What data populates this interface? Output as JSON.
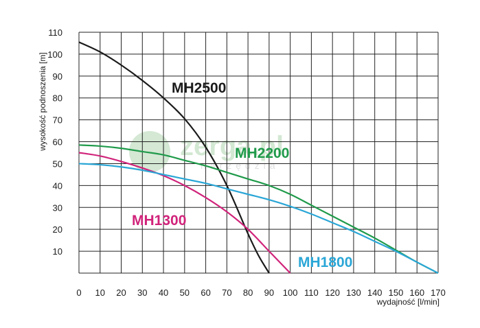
{
  "chart_data": {
    "type": "line",
    "xlabel": "wydajność [l/min]",
    "ylabel": "wysokość podnoszenia [m]",
    "xlim": [
      0,
      170
    ],
    "ylim": [
      0,
      110
    ],
    "xticks": [
      0,
      10,
      20,
      30,
      40,
      50,
      60,
      70,
      80,
      90,
      100,
      110,
      120,
      130,
      140,
      150,
      160,
      170
    ],
    "yticks": [
      10,
      20,
      30,
      40,
      50,
      60,
      70,
      80,
      90,
      100,
      110
    ],
    "grid": true,
    "series": [
      {
        "name": "MH2500",
        "color": "#1a1a1a",
        "x": [
          0,
          10,
          20,
          30,
          40,
          50,
          60,
          70,
          80,
          85,
          90
        ],
        "y": [
          105.5,
          101,
          95,
          88,
          80,
          70.5,
          57.5,
          40,
          18,
          8,
          0
        ]
      },
      {
        "name": "MH2200",
        "color": "#1f9a4a",
        "x": [
          0,
          10,
          20,
          30,
          40,
          50,
          60,
          70,
          80,
          90,
          100,
          110,
          120,
          130,
          140,
          150,
          160,
          170
        ],
        "y": [
          58.5,
          58,
          57,
          55.5,
          54,
          51.5,
          49,
          46,
          43,
          40,
          36,
          31,
          26,
          21,
          16,
          10.5,
          5,
          0
        ]
      },
      {
        "name": "MH1300",
        "color": "#d0237a",
        "x": [
          0,
          10,
          20,
          30,
          40,
          50,
          60,
          70,
          80,
          90,
          100
        ],
        "y": [
          55,
          53.5,
          51,
          48,
          44.5,
          40,
          34.5,
          28,
          20,
          10,
          0
        ]
      },
      {
        "name": "MH1800",
        "color": "#2aa6d6",
        "x": [
          0,
          10,
          20,
          30,
          40,
          50,
          60,
          70,
          80,
          90,
          100,
          110,
          120,
          130,
          140,
          150,
          160,
          170
        ],
        "y": [
          50,
          49.5,
          48.5,
          47,
          45,
          43,
          41,
          38.5,
          36,
          33.5,
          30.5,
          27,
          23,
          19,
          14.5,
          10,
          5,
          0
        ]
      }
    ]
  },
  "watermark": {
    "brand": "zerga.pl",
    "tagline": "narzędzia"
  }
}
